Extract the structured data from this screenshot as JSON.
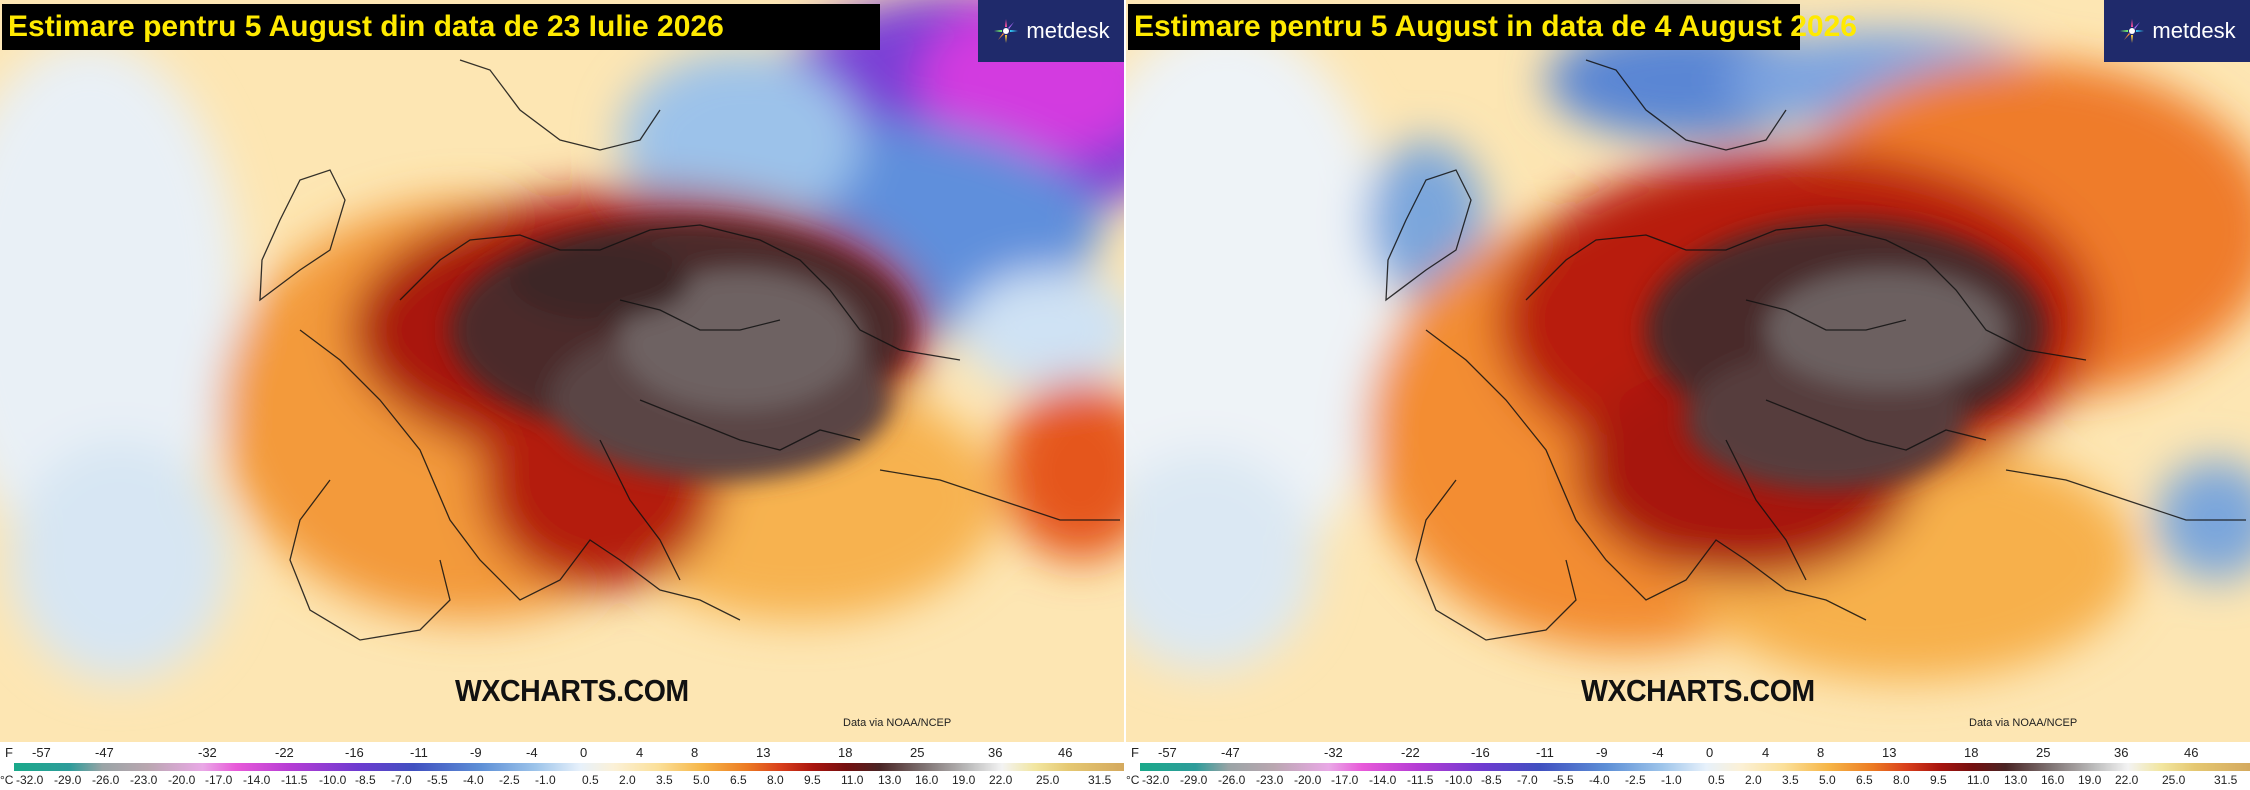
{
  "panels": [
    {
      "title": "Estimare pentru 5 August din data de 23 Iulie 2026",
      "logo_text": "metdesk",
      "watermark": "WXCHARTS.COM",
      "credit": "Data via NOAA/NCEP"
    },
    {
      "title": "Estimare pentru 5 August in data de 4 August 2026",
      "logo_text": "metdesk",
      "watermark": "WXCHARTS.COM",
      "credit": "Data via NOAA/NCEP"
    }
  ],
  "scale": {
    "f_unit": "F",
    "c_unit": "°C",
    "f_ticks": [
      "-57",
      "-47",
      "-32",
      "-22",
      "-16",
      "-11",
      "-9",
      "-4",
      "0",
      "4",
      "8",
      "13",
      "18",
      "25",
      "36",
      "46"
    ],
    "c_ticks": [
      "-32.0",
      "-29.0",
      "-26.0",
      "-23.0",
      "-20.0",
      "-17.0",
      "-14.0",
      "-11.5",
      "-10.0",
      "-8.5",
      "-7.0",
      "-5.5",
      "-4.0",
      "-2.5",
      "-1.0",
      "0.5",
      "2.0",
      "3.5",
      "5.0",
      "6.5",
      "8.0",
      "9.5",
      "11.0",
      "13.0",
      "16.0",
      "19.0",
      "22.0",
      "25.0",
      "31.5"
    ]
  },
  "colors": {
    "title_bg": "#000000",
    "title_text": "#ffea00",
    "logo_bg": "#1f2a6b",
    "extreme_heat": "#4a2f2f",
    "hot": "#a31410",
    "warm": "#f2a13d",
    "cool": "#4f7fd0",
    "cold": "#c62fd6"
  }
}
